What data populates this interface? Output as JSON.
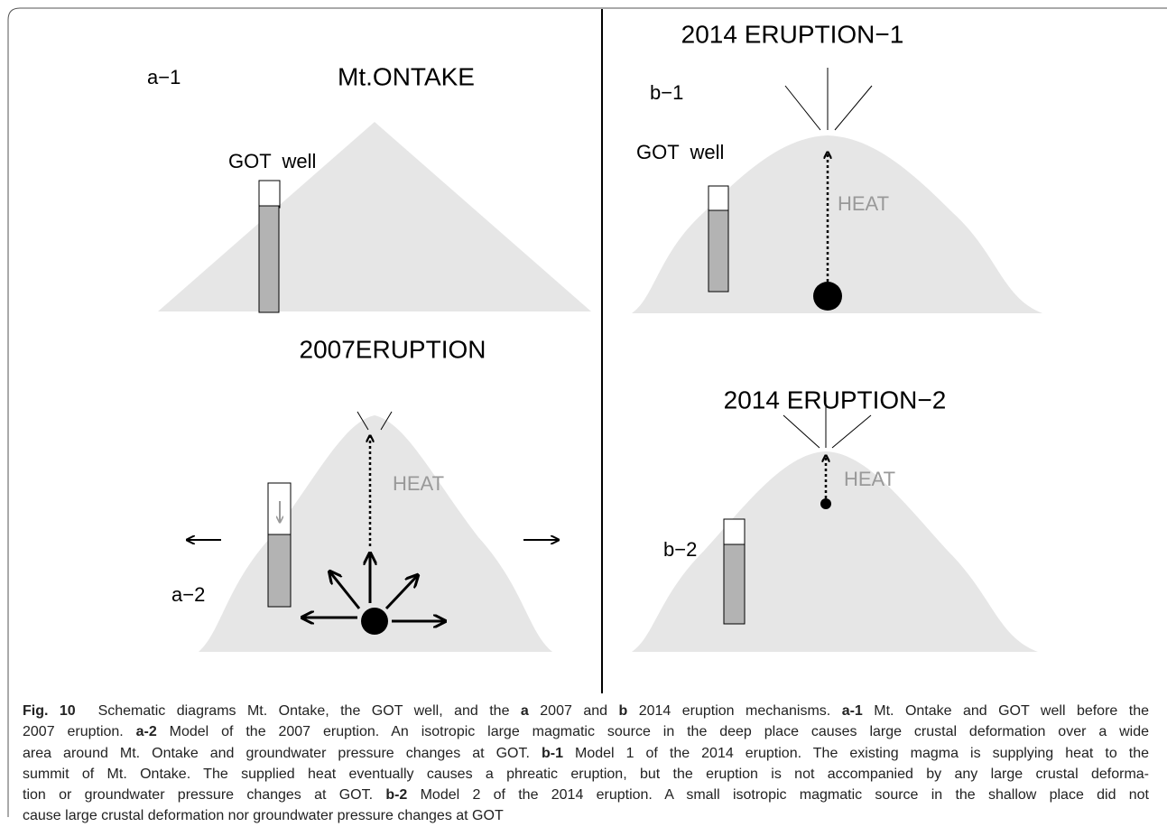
{
  "panels": [
    {
      "label": "a−1",
      "title": "Mt.ONTAKE",
      "well_label": "GOT  well"
    },
    {
      "label": "a−2",
      "title": "2007ERUPTION",
      "heat": "HEAT"
    },
    {
      "label": "b−1",
      "title": "2014 ERUPTION−1",
      "well_label": "GOT  well",
      "heat": "HEAT"
    },
    {
      "label": "b−2",
      "title": "2014 ERUPTION−2",
      "heat": "HEAT"
    }
  ],
  "caption": {
    "lines": [
      [
        {
          "text": "Fig. 10",
          "bold": true
        },
        {
          "text": "  Schematic diagrams Mt. Ontake, the GOT well, and the "
        },
        {
          "text": "a",
          "bold": true
        },
        {
          "text": " 2007 and "
        },
        {
          "text": "b",
          "bold": true
        },
        {
          "text": " 2014 eruption mechanisms. "
        },
        {
          "text": "a-1",
          "bold": true
        },
        {
          "text": " Mt. Ontake and GOT well before the"
        }
      ],
      [
        {
          "text": "2007 eruption. "
        },
        {
          "text": "a-2",
          "bold": true
        },
        {
          "text": " Model of the 2007 eruption. An isotropic large magmatic source in the deep place causes large crustal deformation over a wide"
        }
      ],
      [
        {
          "text": "area around Mt. Ontake and groundwater pressure changes at GOT. "
        },
        {
          "text": "b-1",
          "bold": true
        },
        {
          "text": " Model 1 of the 2014 eruption. The existing magma is supplying heat to the"
        }
      ],
      [
        {
          "text": "summit of Mt. Ontake. The supplied heat eventually causes a phreatic eruption, but the eruption is not accompanied by any large crustal deforma-"
        }
      ],
      [
        {
          "text": "tion or groundwater pressure changes at GOT. "
        },
        {
          "text": "b-2",
          "bold": true
        },
        {
          "text": " Model 2 of the 2014 eruption. A small isotropic magmatic source in the shallow place did not"
        }
      ],
      [
        {
          "text": "cause large crustal deformation nor groundwater pressure changes at GOT"
        }
      ]
    ]
  }
}
